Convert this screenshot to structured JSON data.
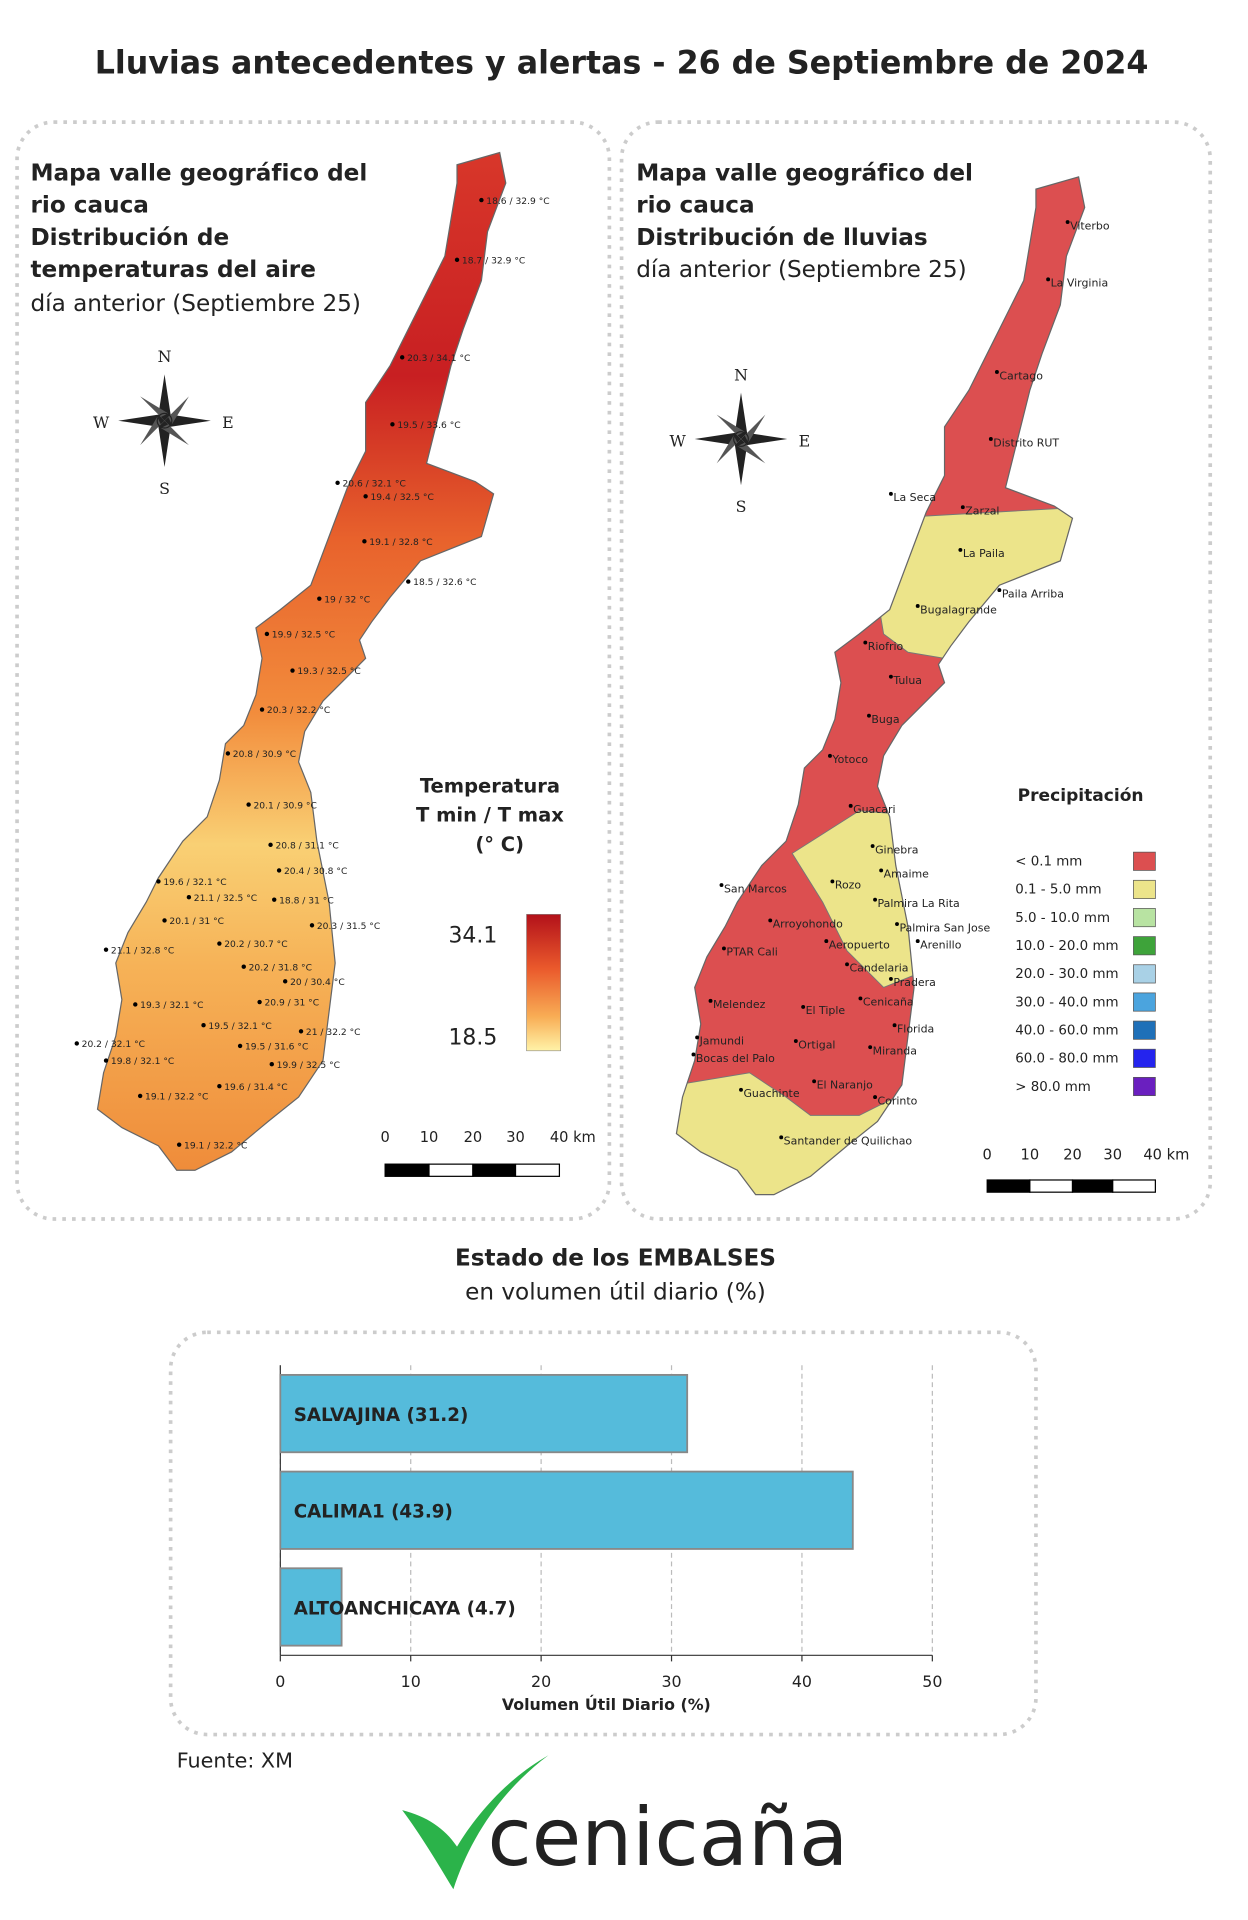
{
  "title": "Lluvias antecedentes y alertas - 26 de Septiembre de 2024",
  "temperature_map": {
    "title_lines": [
      "Mapa valle geográfico del",
      "rio cauca",
      "Distribución de",
      "temperaturas del aire",
      "día anterior (Septiembre 25)"
    ],
    "compass": [
      "N",
      "W",
      "E",
      "S"
    ],
    "legend_title": [
      "Temperatura",
      "T min / T max",
      "(° C)"
    ],
    "legend_max": "34.1",
    "legend_min": "18.5",
    "scale": [
      "0",
      "10",
      "20",
      "30",
      "40 km"
    ],
    "stations": [
      "18.6 / 32.9 °C",
      "18.7 / 32.9 °C",
      "20.3 / 34.1 °C",
      "19.5 / 33.6 °C",
      "20.6 / 32.1 °C",
      "19.4 / 32.5 °C",
      "19.1 / 32.8 °C",
      "18.5 / 32.6 °C",
      "19 / 32 °C",
      "19.9 / 32.5 °C",
      "19.3 / 32.5 °C",
      "20.3 / 32.2 °C",
      "20.8 / 30.9 °C",
      "20.1 / 30.9 °C",
      "20.8 / 31.1 °C",
      "20.4 / 30.8 °C",
      "19.6 / 32.1 °C",
      "21.1 / 32.5 °C",
      "18.8 / 31 °C",
      "20.1 / 31 °C",
      "20.3 / 31.5 °C",
      "20.2 / 30.7 °C",
      "21.1 / 32.8 °C",
      "20.2 / 31.8 °C",
      "20 / 30.4 °C",
      "20.9 / 31 °C",
      "19.3 / 32.1 °C",
      "19.5 / 32.1 °C",
      "21 / 32.2 °C",
      "19.5 / 31.6 °C",
      "20.2 / 32.1 °C",
      "19.8 / 32.1 °C",
      "19.9 / 32.5 °C",
      "19.6 / 31.4 °C",
      "19.1 / 32.2 °C",
      "19.1 / 32.2 °C"
    ]
  },
  "rain_map": {
    "title_lines": [
      "Mapa valle geográfico del",
      "rio cauca",
      "Distribución de lluvias",
      "día anterior (Septiembre 25)"
    ],
    "compass": [
      "N",
      "W",
      "E",
      "S"
    ],
    "legend_title": "Precipitación",
    "legend": [
      {
        "label": "< 0.1 mm",
        "color": "#dc4f50"
      },
      {
        "label": "0.1 - 5.0 mm",
        "color": "#ece48a"
      },
      {
        "label": "5.0 - 10.0 mm",
        "color": "#b8e3a2"
      },
      {
        "label": "10.0 - 20.0 mm",
        "color": "#3ea33a"
      },
      {
        "label": "20.0 - 30.0 mm",
        "color": "#a9d1e6"
      },
      {
        "label": "30.0 - 40.0 mm",
        "color": "#4ba4de"
      },
      {
        "label": "40.0 - 60.0 mm",
        "color": "#1f70b8"
      },
      {
        "label": "60.0 - 80.0 mm",
        "color": "#2424ee"
      },
      {
        "label": "> 80.0 mm",
        "color": "#6a1fbf"
      }
    ],
    "scale": [
      "0",
      "10",
      "20",
      "30",
      "40 km"
    ],
    "stations": [
      "Viterbo",
      "La Virginia",
      "Cartago",
      "Distrito RUT",
      "La Seca",
      "Zarzal",
      "La Paila",
      "Paila Arriba",
      "Bugalagrande",
      "Riofrio",
      "Tulua",
      "Buga",
      "Yotoco",
      "Guacari",
      "Ginebra",
      "Amaime",
      "San Marcos",
      "Rozo",
      "Palmira La Rita",
      "Arroyohondo",
      "Palmira San Jose",
      "Aeropuerto",
      "Arenillo",
      "PTAR Cali",
      "Candelaria",
      "Pradera",
      "Cenicaña",
      "Melendez",
      "El Tiple",
      "Florida",
      "Ortigal",
      "Miranda",
      "Jamundi",
      "Bocas del Palo",
      "El Naranjo",
      "Guachinte",
      "Corinto",
      "Santander de Quilichao"
    ]
  },
  "chart_data": {
    "type": "bar",
    "orientation": "horizontal",
    "title": "Estado de los EMBALSES",
    "subtitle": "en volumen útil diario (%)",
    "categories": [
      "SALVAJINA (31.2)",
      "CALIMA1 (43.9)",
      "ALTOANCHICAYA (4.7)"
    ],
    "values": [
      31.2,
      43.9,
      4.7
    ],
    "color": "#55bbdb",
    "xlabel": "Volumen Útil Diario (%)",
    "xlim": [
      0,
      50
    ],
    "xticks": [
      0,
      10,
      20,
      30,
      40,
      50
    ],
    "grid": true
  },
  "footer": {
    "source": "Fuente: XM",
    "logo": "cenicaña"
  }
}
